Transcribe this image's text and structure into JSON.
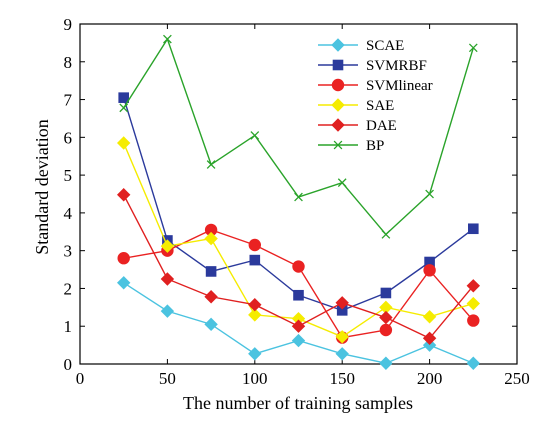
{
  "chart_data": {
    "type": "line",
    "xlabel": "The number of training samples",
    "ylabel": "Standard deviation",
    "xlim": [
      0,
      250
    ],
    "ylim": [
      0,
      9
    ],
    "xticks": [
      0,
      50,
      100,
      150,
      200,
      250
    ],
    "yticks": [
      0,
      1,
      2,
      3,
      4,
      5,
      6,
      7,
      8,
      9
    ],
    "grid": false,
    "legend_position": "top-right",
    "x": [
      25,
      50,
      75,
      100,
      125,
      150,
      175,
      200,
      225
    ],
    "series": [
      {
        "name": "SCAE",
        "color": "#4bc3e0",
        "marker": "diamond",
        "values": [
          2.15,
          1.4,
          1.05,
          0.27,
          0.62,
          0.27,
          0.02,
          0.5,
          0.02
        ]
      },
      {
        "name": "SVMRBF",
        "color": "#2b3a9c",
        "marker": "square",
        "values": [
          7.05,
          3.27,
          2.45,
          2.75,
          1.82,
          1.42,
          1.88,
          2.7,
          3.58
        ]
      },
      {
        "name": "SVMlinear",
        "color": "#ea2222",
        "marker": "circle",
        "values": [
          2.8,
          3.0,
          3.55,
          3.15,
          2.58,
          0.7,
          0.9,
          2.48,
          1.15
        ]
      },
      {
        "name": "SAE",
        "color": "#f5ec00",
        "marker": "diamond",
        "values": [
          5.85,
          3.12,
          3.32,
          1.3,
          1.2,
          0.72,
          1.5,
          1.25,
          1.6
        ]
      },
      {
        "name": "DAE",
        "color": "#e02020",
        "marker": "diamond",
        "values": [
          4.48,
          2.25,
          1.78,
          1.57,
          1.0,
          1.62,
          1.23,
          0.68,
          2.07
        ]
      },
      {
        "name": "BP",
        "color": "#2aa32a",
        "marker": "x",
        "values": [
          6.78,
          8.6,
          5.28,
          6.05,
          4.42,
          4.8,
          3.43,
          4.5,
          8.37
        ]
      }
    ]
  }
}
